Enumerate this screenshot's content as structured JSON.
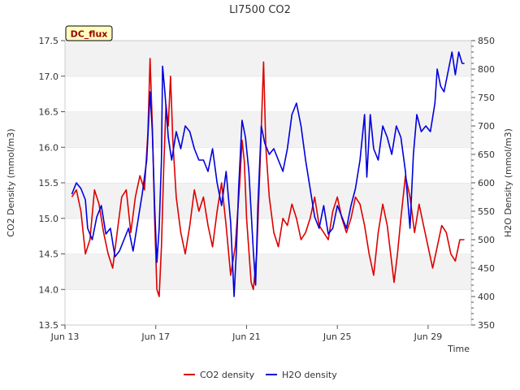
{
  "chart_data": {
    "type": "line",
    "title": "LI7500 CO2",
    "badge": "DC_flux",
    "xlabel": "Time",
    "ylabel_left": "CO2 Density (mmol/m3)",
    "ylabel_right": "H2O Density (mmol/m3)",
    "x_ticks": [
      {
        "label": "Jun 13",
        "day": 13
      },
      {
        "label": "Jun 17",
        "day": 17
      },
      {
        "label": "Jun 21",
        "day": 21
      },
      {
        "label": "Jun 25",
        "day": 25
      },
      {
        "label": "Jun 29",
        "day": 29
      }
    ],
    "xlim_days": [
      13,
      30.9
    ],
    "ylim_left": [
      13.5,
      17.5
    ],
    "ylim_right": [
      350,
      850
    ],
    "y_ticks_left": [
      "13.5",
      "14.0",
      "14.5",
      "15.0",
      "15.5",
      "16.0",
      "16.5",
      "17.0",
      "17.5"
    ],
    "y_ticks_right": [
      "350",
      "400",
      "450",
      "500",
      "550",
      "600",
      "650",
      "700",
      "750",
      "800",
      "850"
    ],
    "grid": "horizontal-bands",
    "legend_position": "bottom",
    "series": [
      {
        "name": "CO2 density",
        "axis": "left",
        "color": "#dd0000",
        "points": [
          [
            13.3,
            15.3
          ],
          [
            13.5,
            15.4
          ],
          [
            13.7,
            15.1
          ],
          [
            13.9,
            14.5
          ],
          [
            14.1,
            14.7
          ],
          [
            14.3,
            15.4
          ],
          [
            14.5,
            15.2
          ],
          [
            14.7,
            14.8
          ],
          [
            14.9,
            14.5
          ],
          [
            15.1,
            14.3
          ],
          [
            15.3,
            14.8
          ],
          [
            15.5,
            15.3
          ],
          [
            15.7,
            15.4
          ],
          [
            15.9,
            14.8
          ],
          [
            16.1,
            15.3
          ],
          [
            16.3,
            15.6
          ],
          [
            16.5,
            15.4
          ],
          [
            16.65,
            16.2
          ],
          [
            16.75,
            17.25
          ],
          [
            16.85,
            16.3
          ],
          [
            16.95,
            15.0
          ],
          [
            17.05,
            14.0
          ],
          [
            17.15,
            13.9
          ],
          [
            17.25,
            14.6
          ],
          [
            17.35,
            15.7
          ],
          [
            17.45,
            16.6
          ],
          [
            17.55,
            16.3
          ],
          [
            17.65,
            17.0
          ],
          [
            17.75,
            16.1
          ],
          [
            17.9,
            15.3
          ],
          [
            18.1,
            14.8
          ],
          [
            18.3,
            14.5
          ],
          [
            18.5,
            14.9
          ],
          [
            18.7,
            15.4
          ],
          [
            18.9,
            15.1
          ],
          [
            19.1,
            15.3
          ],
          [
            19.3,
            14.9
          ],
          [
            19.5,
            14.6
          ],
          [
            19.7,
            15.1
          ],
          [
            19.9,
            15.5
          ],
          [
            20.1,
            14.9
          ],
          [
            20.3,
            14.2
          ],
          [
            20.5,
            14.6
          ],
          [
            20.7,
            15.5
          ],
          [
            20.8,
            16.1
          ],
          [
            20.9,
            15.8
          ],
          [
            21.0,
            15.0
          ],
          [
            21.2,
            14.1
          ],
          [
            21.3,
            14.0
          ],
          [
            21.45,
            14.5
          ],
          [
            21.6,
            15.8
          ],
          [
            21.75,
            17.2
          ],
          [
            21.85,
            16.0
          ],
          [
            22.0,
            15.3
          ],
          [
            22.2,
            14.8
          ],
          [
            22.4,
            14.6
          ],
          [
            22.6,
            15.0
          ],
          [
            22.8,
            14.9
          ],
          [
            23.0,
            15.2
          ],
          [
            23.2,
            15.0
          ],
          [
            23.4,
            14.7
          ],
          [
            23.6,
            14.8
          ],
          [
            23.8,
            15.0
          ],
          [
            24.0,
            15.3
          ],
          [
            24.2,
            14.9
          ],
          [
            24.4,
            14.8
          ],
          [
            24.6,
            14.7
          ],
          [
            24.8,
            15.1
          ],
          [
            25.0,
            15.3
          ],
          [
            25.2,
            15.0
          ],
          [
            25.4,
            14.8
          ],
          [
            25.6,
            15.0
          ],
          [
            25.8,
            15.3
          ],
          [
            26.0,
            15.2
          ],
          [
            26.2,
            14.9
          ],
          [
            26.4,
            14.5
          ],
          [
            26.6,
            14.2
          ],
          [
            26.8,
            14.8
          ],
          [
            27.0,
            15.2
          ],
          [
            27.2,
            14.9
          ],
          [
            27.35,
            14.5
          ],
          [
            27.5,
            14.1
          ],
          [
            27.65,
            14.5
          ],
          [
            27.8,
            15.0
          ],
          [
            28.0,
            15.6
          ],
          [
            28.2,
            15.3
          ],
          [
            28.4,
            14.8
          ],
          [
            28.6,
            15.2
          ],
          [
            28.8,
            14.9
          ],
          [
            29.0,
            14.6
          ],
          [
            29.2,
            14.3
          ],
          [
            29.4,
            14.6
          ],
          [
            29.6,
            14.9
          ],
          [
            29.8,
            14.8
          ],
          [
            30.0,
            14.5
          ],
          [
            30.2,
            14.4
          ],
          [
            30.4,
            14.7
          ],
          [
            30.6,
            14.7
          ]
        ]
      },
      {
        "name": "H2O density",
        "axis": "right",
        "color": "#0000dd",
        "points": [
          [
            13.3,
            580
          ],
          [
            13.5,
            600
          ],
          [
            13.7,
            590
          ],
          [
            13.9,
            570
          ],
          [
            14.0,
            520
          ],
          [
            14.2,
            500
          ],
          [
            14.4,
            540
          ],
          [
            14.6,
            560
          ],
          [
            14.8,
            510
          ],
          [
            15.0,
            520
          ],
          [
            15.2,
            470
          ],
          [
            15.4,
            480
          ],
          [
            15.6,
            500
          ],
          [
            15.8,
            520
          ],
          [
            16.0,
            480
          ],
          [
            16.2,
            530
          ],
          [
            16.4,
            580
          ],
          [
            16.6,
            640
          ],
          [
            16.75,
            760
          ],
          [
            16.85,
            690
          ],
          [
            16.95,
            560
          ],
          [
            17.05,
            460
          ],
          [
            17.15,
            520
          ],
          [
            17.25,
            640
          ],
          [
            17.3,
            805
          ],
          [
            17.4,
            760
          ],
          [
            17.55,
            680
          ],
          [
            17.7,
            640
          ],
          [
            17.9,
            690
          ],
          [
            18.1,
            660
          ],
          [
            18.3,
            700
          ],
          [
            18.5,
            690
          ],
          [
            18.7,
            660
          ],
          [
            18.9,
            640
          ],
          [
            19.1,
            640
          ],
          [
            19.3,
            620
          ],
          [
            19.5,
            660
          ],
          [
            19.7,
            600
          ],
          [
            19.9,
            560
          ],
          [
            20.1,
            620
          ],
          [
            20.3,
            530
          ],
          [
            20.45,
            400
          ],
          [
            20.55,
            480
          ],
          [
            20.65,
            590
          ],
          [
            20.8,
            710
          ],
          [
            20.95,
            680
          ],
          [
            21.1,
            620
          ],
          [
            21.3,
            480
          ],
          [
            21.4,
            420
          ],
          [
            21.5,
            560
          ],
          [
            21.65,
            700
          ],
          [
            21.8,
            670
          ],
          [
            22.0,
            650
          ],
          [
            22.2,
            660
          ],
          [
            22.4,
            640
          ],
          [
            22.6,
            620
          ],
          [
            22.8,
            660
          ],
          [
            23.0,
            720
          ],
          [
            23.2,
            740
          ],
          [
            23.4,
            700
          ],
          [
            23.6,
            640
          ],
          [
            23.8,
            590
          ],
          [
            24.0,
            540
          ],
          [
            24.2,
            520
          ],
          [
            24.4,
            560
          ],
          [
            24.6,
            510
          ],
          [
            24.8,
            520
          ],
          [
            25.0,
            560
          ],
          [
            25.2,
            540
          ],
          [
            25.4,
            520
          ],
          [
            25.6,
            560
          ],
          [
            25.8,
            590
          ],
          [
            26.0,
            640
          ],
          [
            26.2,
            720
          ],
          [
            26.3,
            610
          ],
          [
            26.45,
            720
          ],
          [
            26.6,
            660
          ],
          [
            26.8,
            640
          ],
          [
            27.0,
            700
          ],
          [
            27.2,
            680
          ],
          [
            27.4,
            650
          ],
          [
            27.6,
            700
          ],
          [
            27.8,
            680
          ],
          [
            28.0,
            620
          ],
          [
            28.2,
            520
          ],
          [
            28.35,
            650
          ],
          [
            28.5,
            720
          ],
          [
            28.7,
            690
          ],
          [
            28.9,
            700
          ],
          [
            29.1,
            690
          ],
          [
            29.3,
            740
          ],
          [
            29.4,
            800
          ],
          [
            29.55,
            770
          ],
          [
            29.7,
            760
          ],
          [
            29.9,
            800
          ],
          [
            30.05,
            830
          ],
          [
            30.2,
            790
          ],
          [
            30.35,
            830
          ],
          [
            30.5,
            810
          ],
          [
            30.6,
            810
          ]
        ]
      }
    ]
  }
}
